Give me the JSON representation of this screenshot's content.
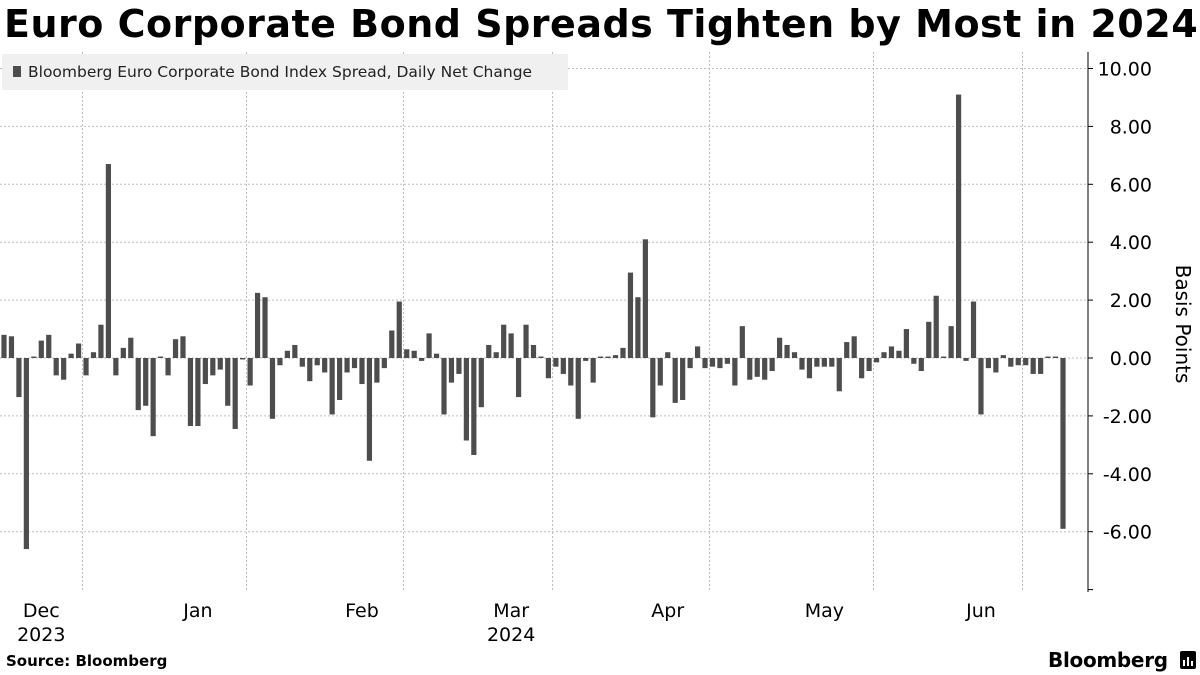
{
  "header": {
    "title": "Euro Corporate Bond Spreads Tighten by Most in 2024"
  },
  "footer": {
    "source": "Source:  Bloomberg",
    "brand": "Bloomberg"
  },
  "colors": {
    "bar": "#4d4d4d",
    "grid": "#bdbdbd",
    "legend_bg": "#f0f0f0"
  },
  "chart_data": {
    "type": "bar",
    "title": "Euro Corporate Bond Spreads Tighten by Most in 2024",
    "legend": [
      "Bloomberg Euro Corporate Bond Index Spread, Daily Net Change"
    ],
    "legend_position": "top-left",
    "xlabel": "",
    "ylabel": "Basis Points",
    "ylim": [
      -7.5,
      10.5
    ],
    "y_ticks": [
      10,
      8,
      6,
      4,
      2,
      0,
      -2,
      -4,
      -6
    ],
    "y_tick_labels": [
      "10.00",
      "8.00",
      "6.00",
      "4.00",
      "2.00",
      "0.00",
      "-2.00",
      "-4.00",
      "-6.00"
    ],
    "y_axis_side": "right",
    "grid": true,
    "x_tick_labels": [
      {
        "label": "Dec",
        "sublabel": "2023",
        "bar_index": 5
      },
      {
        "label": "Jan",
        "sublabel": "",
        "bar_index": 26
      },
      {
        "label": "Feb",
        "sublabel": "",
        "bar_index": 48
      },
      {
        "label": "Mar",
        "sublabel": "2024",
        "bar_index": 68
      },
      {
        "label": "Apr",
        "sublabel": "",
        "bar_index": 89
      },
      {
        "label": "May",
        "sublabel": "",
        "bar_index": 110
      },
      {
        "label": "Jun",
        "sublabel": "",
        "bar_index": 131
      }
    ],
    "month_separators_after_bar": [
      10.5,
      32.5,
      53.5,
      73.5,
      94.5,
      116.5,
      136.5
    ],
    "series": [
      {
        "name": "Bloomberg Euro Corporate Bond Index Spread, Daily Net Change",
        "values": [
          0.8,
          0.75,
          -1.35,
          -6.6,
          0.05,
          0.6,
          0.8,
          -0.6,
          -0.75,
          0.15,
          0.5,
          -0.6,
          0.2,
          1.15,
          6.7,
          -0.6,
          0.35,
          0.7,
          -1.8,
          -1.65,
          -2.7,
          0.05,
          -0.6,
          0.65,
          0.75,
          -2.35,
          -2.35,
          -0.9,
          -0.6,
          -0.4,
          -1.65,
          -2.45,
          -0.05,
          -0.95,
          2.25,
          2.1,
          -2.1,
          -0.25,
          0.25,
          0.45,
          -0.3,
          -0.8,
          -0.25,
          -0.5,
          -1.95,
          -1.45,
          -0.5,
          -0.35,
          -0.9,
          -3.55,
          -0.85,
          -0.35,
          0.95,
          1.95,
          0.3,
          0.25,
          -0.1,
          0.85,
          0.15,
          -1.95,
          -0.85,
          -0.55,
          -2.85,
          -3.35,
          -1.7,
          0.45,
          0.2,
          1.15,
          0.85,
          -1.35,
          1.15,
          0.45,
          0.05,
          -0.7,
          -0.3,
          -0.55,
          -0.95,
          -2.1,
          -0.1,
          -0.85,
          0.05,
          0.05,
          0.1,
          0.35,
          2.95,
          2.1,
          4.1,
          -2.05,
          -0.95,
          0.2,
          -1.55,
          -1.45,
          -0.35,
          0.4,
          -0.35,
          -0.3,
          -0.35,
          -0.2,
          -0.95,
          1.1,
          -0.75,
          -0.65,
          -0.75,
          -0.45,
          0.7,
          0.45,
          0.2,
          -0.4,
          -0.7,
          -0.3,
          -0.3,
          -0.3,
          -1.15,
          0.55,
          0.75,
          -0.7,
          -0.45,
          -0.15,
          0.2,
          0.4,
          0.25,
          1.0,
          -0.2,
          -0.45,
          1.25,
          2.15,
          0.05,
          1.1,
          9.1,
          -0.1,
          1.95,
          -1.95,
          -0.35,
          -0.5,
          0.1,
          -0.3,
          -0.25,
          -0.25,
          -0.55,
          -0.55,
          0.05,
          0.05,
          -5.9
        ]
      }
    ]
  }
}
